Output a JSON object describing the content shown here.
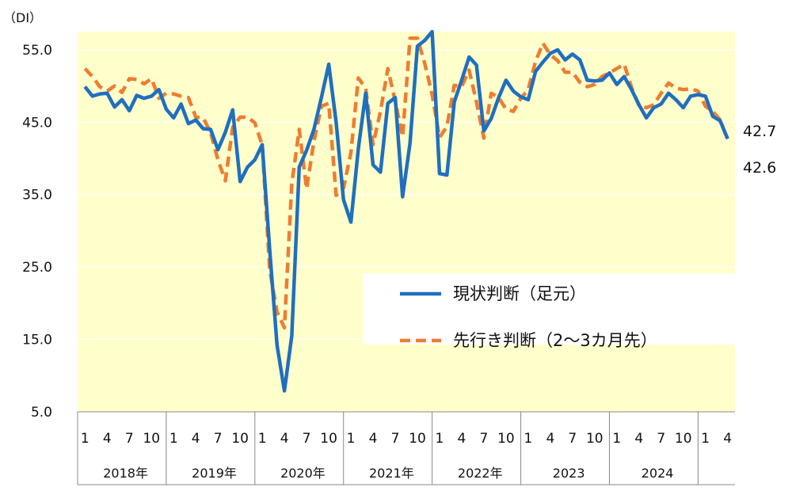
{
  "chart_data": {
    "type": "line",
    "ylabel": "（DI）",
    "ylim": [
      5,
      57.5
    ],
    "yticks": [
      5.0,
      15.0,
      25.0,
      35.0,
      45.0,
      55.0
    ],
    "ytick_labels": [
      "5.0",
      "15.0",
      "25.0",
      "35.0",
      "45.0",
      "55.0"
    ],
    "month_tick_labels": [
      "1",
      "4",
      "7",
      "10",
      "1",
      "4",
      "7",
      "10",
      "1",
      "4",
      "7",
      "10",
      "1",
      "4",
      "7",
      "10",
      "1",
      "4",
      "7",
      "10",
      "1",
      "4",
      "7",
      "10",
      "1",
      "4",
      "7",
      "10",
      "1",
      "4"
    ],
    "year_labels": [
      "2018年",
      "2019年",
      "2020年",
      "2021年",
      "2022年",
      "2023",
      "2024"
    ],
    "x_start": "2018-01",
    "x_end": "2025-04",
    "plot_background": "#ffffcc",
    "legend_placement": "center-right",
    "series": [
      {
        "name": "現状判断（足元）",
        "color": "#1f6fbf",
        "style": "solid",
        "end_label": "42.7",
        "values": [
          49.9,
          48.6,
          48.9,
          49.0,
          47.1,
          48.1,
          46.6,
          48.7,
          48.3,
          48.6,
          49.5,
          46.8,
          45.6,
          47.5,
          44.8,
          45.3,
          44.1,
          44.0,
          41.2,
          43.6,
          46.7,
          36.8,
          38.8,
          39.8,
          41.9,
          27.4,
          14.2,
          7.9,
          15.5,
          38.8,
          41.1,
          44.0,
          48.4,
          53.0,
          45.0,
          34.3,
          31.2,
          41.3,
          49.0,
          39.1,
          38.1,
          47.6,
          48.4,
          34.7,
          42.1,
          55.5,
          56.3,
          57.5,
          37.9,
          37.7,
          47.8,
          50.8,
          54.0,
          52.9,
          43.8,
          45.5,
          48.4,
          50.8,
          49.3,
          48.5,
          48.1,
          52.0,
          53.3,
          54.5,
          55.0,
          53.6,
          54.4,
          53.6,
          50.8,
          50.7,
          50.8,
          51.8,
          50.2,
          51.3,
          49.5,
          47.4,
          45.6,
          47.0,
          47.5,
          49.0,
          48.1,
          47.0,
          48.6,
          48.8,
          48.6,
          45.8,
          45.2,
          42.7
        ]
      },
      {
        "name": "先行き判断（2～3カ月先）",
        "color": "#ed7d31",
        "style": "dashed",
        "end_label": "42.6",
        "values": [
          52.4,
          51.3,
          49.9,
          49.3,
          50.0,
          49.1,
          51.0,
          50.9,
          50.3,
          51.0,
          48.3,
          49.0,
          48.9,
          48.6,
          48.4,
          45.7,
          45.6,
          43.6,
          39.8,
          36.9,
          44.3,
          45.7,
          45.7,
          44.9,
          41.8,
          24.6,
          18.8,
          16.6,
          36.5,
          44.0,
          35.8,
          42.4,
          47.2,
          47.6,
          34.9,
          35.9,
          40.8,
          51.1,
          49.7,
          41.9,
          46.5,
          52.4,
          47.9,
          43.0,
          56.6,
          56.6,
          53.1,
          48.8,
          42.9,
          44.4,
          50.1,
          49.9,
          52.2,
          47.8,
          42.8,
          49.0,
          48.4,
          46.8,
          46.5,
          48.3,
          49.5,
          53.4,
          55.9,
          54.3,
          53.5,
          51.9,
          51.9,
          50.5,
          49.9,
          50.2,
          51.3,
          51.8,
          52.4,
          53.0,
          49.8,
          47.3,
          47.0,
          47.4,
          49.0,
          50.4,
          49.7,
          49.5,
          49.6,
          49.3,
          47.2,
          46.5,
          45.3,
          42.6
        ]
      }
    ]
  }
}
